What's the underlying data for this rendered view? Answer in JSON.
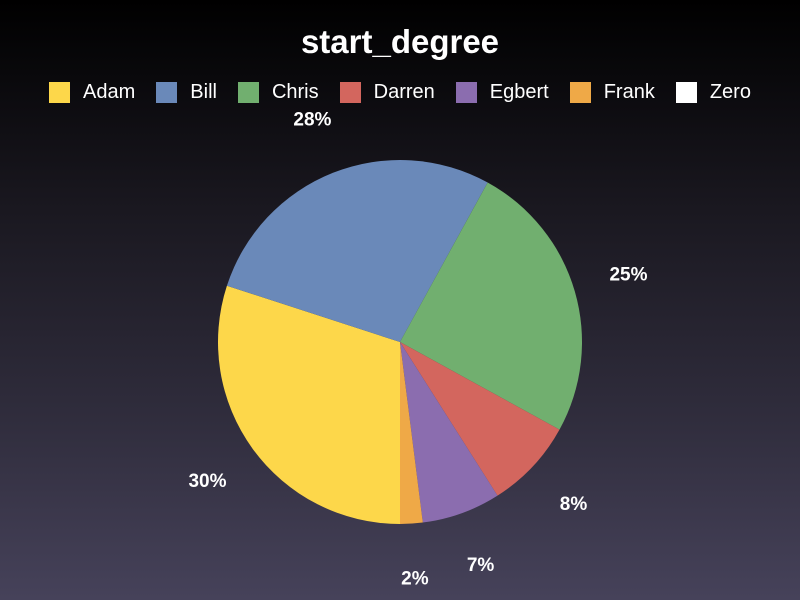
{
  "chart_data": {
    "type": "pie",
    "title": "start_degree",
    "legend_position": "top",
    "categories": [
      "Adam",
      "Bill",
      "Chris",
      "Darren",
      "Egbert",
      "Frank",
      "Zero"
    ],
    "values": [
      30,
      28,
      25,
      8,
      7,
      2,
      0
    ],
    "value_labels": [
      "30%",
      "28%",
      "25%",
      "8%",
      "7%",
      "2%",
      ""
    ],
    "colors": [
      "#fdd74a",
      "#6a89b9",
      "#71af6f",
      "#d3665e",
      "#8b6daf",
      "#efa947",
      "#ffffff"
    ],
    "start_angle_deg": 180,
    "direction": "clockwise"
  }
}
